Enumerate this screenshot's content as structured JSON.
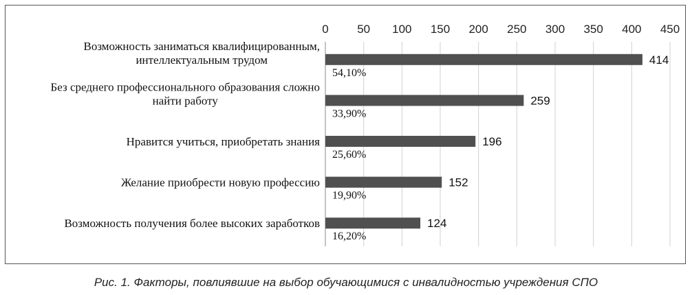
{
  "caption": "Рис. 1. Факторы, повлиявшие на выбор обучающимися с инвалидностью учреждения СПО",
  "chart_data": {
    "type": "bar",
    "orientation": "horizontal",
    "xlim": [
      0,
      450
    ],
    "xticks": [
      0,
      50,
      100,
      150,
      200,
      250,
      300,
      350,
      400,
      450
    ],
    "grid": true,
    "legend": "none",
    "bar_color": "#505050",
    "categories": [
      [
        "Возможность заниматься квалифицированным,",
        "интеллектуальным трудом"
      ],
      [
        "Без среднего профессионального образования сложно",
        "найти работу"
      ],
      [
        "Нравится учиться, приобретать знания"
      ],
      [
        "Желание  приобрести новую профессию"
      ],
      [
        "Возможность получения более высоких заработков"
      ]
    ],
    "values": [
      414,
      259,
      196,
      152,
      124
    ],
    "percent_labels": [
      "54,10%",
      "33,90%",
      "25,60%",
      "19,90%",
      "16,20%"
    ]
  }
}
